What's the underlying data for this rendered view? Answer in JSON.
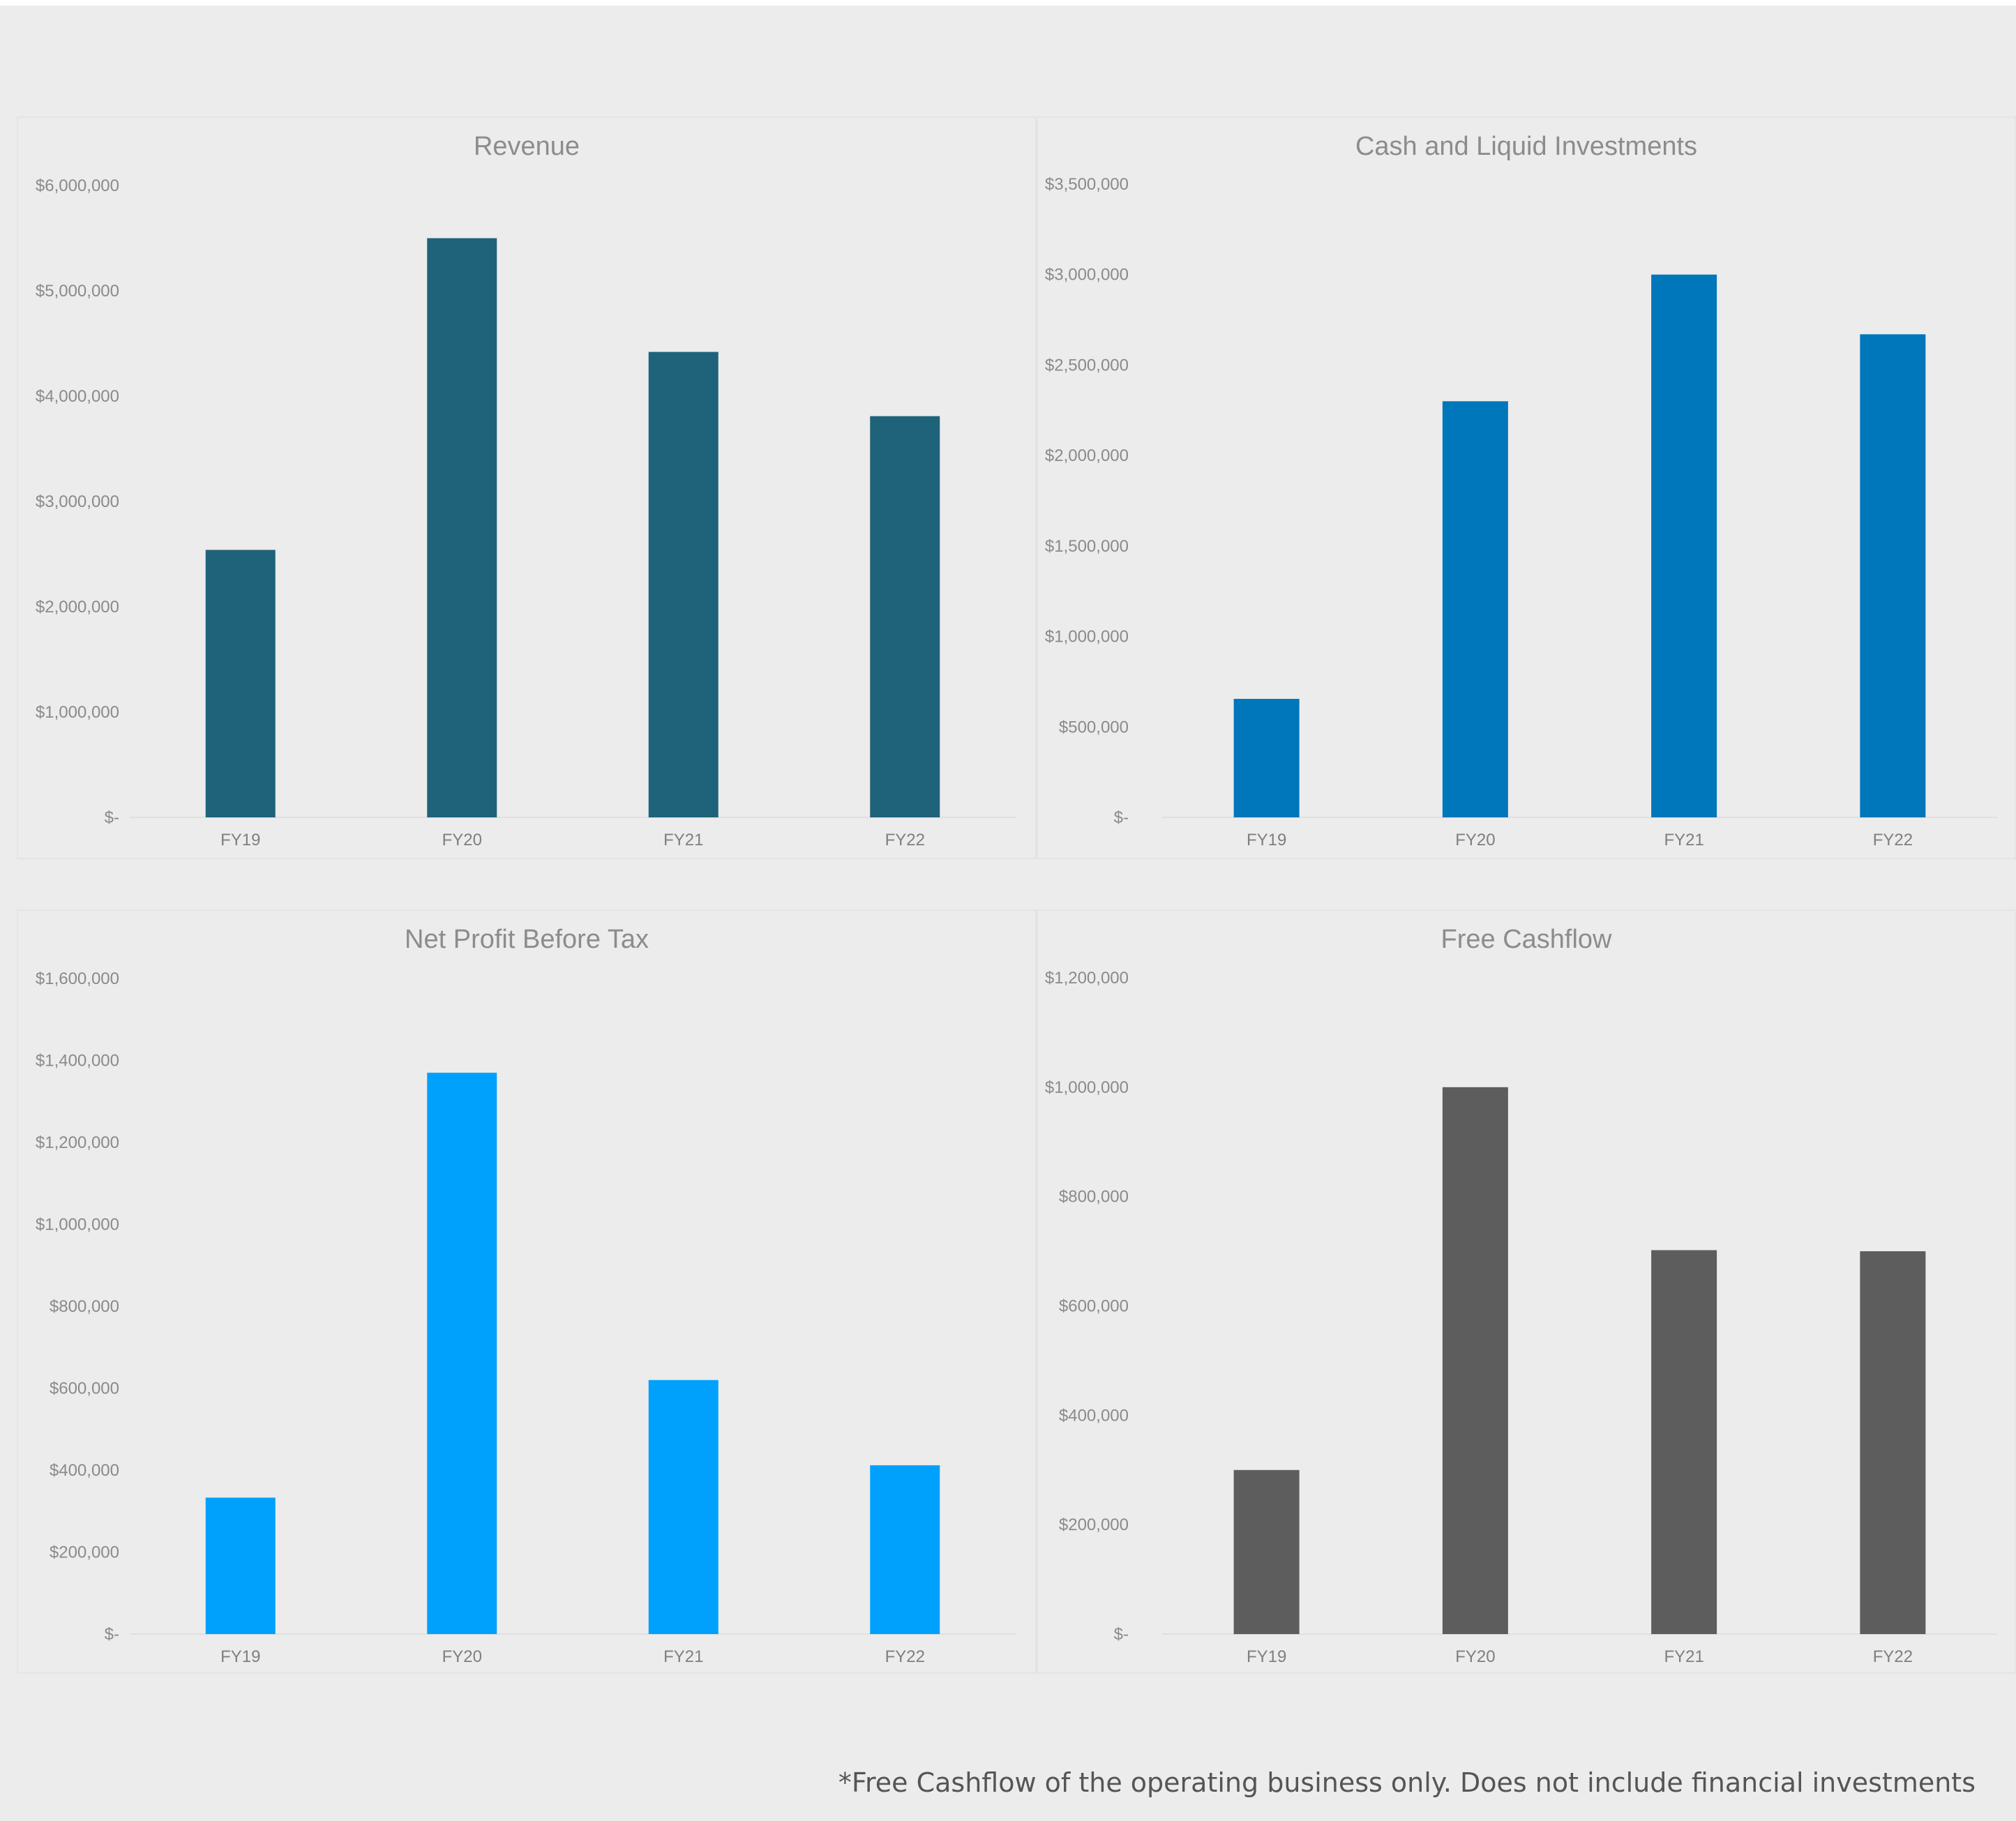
{
  "footnote": "*Free Cashflow of the operating business only. Does not include financial investments",
  "chart_data": [
    {
      "type": "bar",
      "title": "Revenue",
      "categories": [
        "FY19",
        "FY20",
        "FY21",
        "FY22"
      ],
      "values": [
        2540000,
        5500000,
        4420000,
        3810000
      ],
      "ylim": [
        0,
        6000000
      ],
      "yticks": [
        0,
        1000000,
        2000000,
        3000000,
        4000000,
        5000000,
        6000000
      ],
      "ytick_labels": [
        "$-",
        "$1,000,000",
        "$2,000,000",
        "$3,000,000",
        "$4,000,000",
        "$5,000,000",
        "$6,000,000"
      ],
      "color": "#1f637b",
      "xlabel": "",
      "ylabel": "",
      "grid": false,
      "legend": "none"
    },
    {
      "type": "bar",
      "title": "Cash and Liquid Investments",
      "categories": [
        "FY19",
        "FY20",
        "FY21",
        "FY22"
      ],
      "values": [
        655000,
        2300000,
        3000000,
        2670000
      ],
      "ylim": [
        0,
        3500000
      ],
      "yticks": [
        0,
        500000,
        1000000,
        1500000,
        2000000,
        2500000,
        3000000,
        3500000
      ],
      "ytick_labels": [
        "$-",
        "$500,000",
        "$1,000,000",
        "$1,500,000",
        "$2,000,000",
        "$2,500,000",
        "$3,000,000",
        "$3,500,000"
      ],
      "color": "#0076bb",
      "xlabel": "",
      "ylabel": "",
      "grid": false,
      "legend": "none"
    },
    {
      "type": "bar",
      "title": "Net Profit Before Tax",
      "categories": [
        "FY19",
        "FY20",
        "FY21",
        "FY22"
      ],
      "values": [
        333000,
        1370000,
        620000,
        412000
      ],
      "ylim": [
        0,
        1600000
      ],
      "yticks": [
        0,
        200000,
        400000,
        600000,
        800000,
        1000000,
        1200000,
        1400000,
        1600000
      ],
      "ytick_labels": [
        "$-",
        "$200,000",
        "$400,000",
        "$600,000",
        "$800,000",
        "$1,000,000",
        "$1,200,000",
        "$1,400,000",
        "$1,600,000"
      ],
      "color": "#00a1fd",
      "xlabel": "",
      "ylabel": "",
      "grid": false,
      "legend": "none"
    },
    {
      "type": "bar",
      "title": "Free Cashflow",
      "categories": [
        "FY19",
        "FY20",
        "FY21",
        "FY22"
      ],
      "values": [
        300000,
        1000000,
        702000,
        700000
      ],
      "ylim": [
        0,
        1200000
      ],
      "yticks": [
        0,
        200000,
        400000,
        600000,
        800000,
        1000000,
        1200000
      ],
      "ytick_labels": [
        "$-",
        "$200,000",
        "$400,000",
        "$600,000",
        "$800,000",
        "$1,000,000",
        "$1,200,000"
      ],
      "color": "#5d5d5d",
      "xlabel": "",
      "ylabel": "",
      "grid": false,
      "legend": "none"
    }
  ]
}
